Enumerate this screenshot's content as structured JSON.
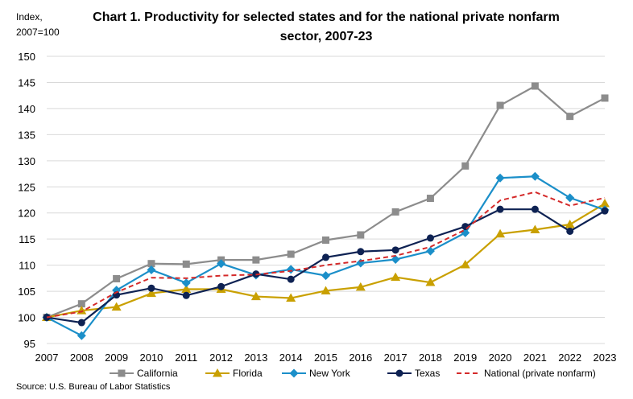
{
  "chart_data": {
    "type": "line",
    "title_line1": "Chart 1. Productivity for selected states and for the national private nonfarm",
    "title_line2": "sector, 2007-23",
    "ylabel_line1": "Index,",
    "ylabel_line2": "2007=100",
    "source": "Source: U.S. Bureau of Labor Statistics",
    "ylim": [
      95,
      150
    ],
    "yticks": [
      95,
      100,
      105,
      110,
      115,
      120,
      125,
      130,
      135,
      140,
      145,
      150
    ],
    "grid": true,
    "legend_position": "bottom",
    "x": [
      "2007",
      "2008",
      "2009",
      "2010",
      "2011",
      "2012",
      "2013",
      "2014",
      "2015",
      "2016",
      "2017",
      "2018",
      "2019",
      "2020",
      "2021",
      "2022",
      "2023"
    ],
    "series": [
      {
        "name": "California",
        "color": "#8c8c8c",
        "marker": "square",
        "dashed": false,
        "values": [
          100,
          102.6,
          107.4,
          110.3,
          110.2,
          111.0,
          111.0,
          112.1,
          114.8,
          115.8,
          120.2,
          122.8,
          129.0,
          140.6,
          144.3,
          138.5,
          142.0
        ]
      },
      {
        "name": "Florida",
        "color": "#c9a000",
        "marker": "triangle",
        "dashed": false,
        "values": [
          100,
          101.3,
          102.0,
          104.6,
          105.4,
          105.4,
          104.0,
          103.7,
          105.1,
          105.8,
          107.7,
          106.7,
          110.1,
          116.0,
          116.8,
          117.8,
          121.8
        ]
      },
      {
        "name": "New York",
        "color": "#1b8fc9",
        "marker": "diamond",
        "dashed": false,
        "values": [
          100,
          96.5,
          105.2,
          109.1,
          106.6,
          110.3,
          108.1,
          109.2,
          108.0,
          110.4,
          111.1,
          112.7,
          116.2,
          126.7,
          127.0,
          122.9,
          120.6
        ]
      },
      {
        "name": "Texas",
        "color": "#0e2253",
        "marker": "circle",
        "dashed": false,
        "values": [
          100,
          99.0,
          104.3,
          105.6,
          104.2,
          105.9,
          108.3,
          107.3,
          111.5,
          112.6,
          112.9,
          115.2,
          117.4,
          120.7,
          120.7,
          116.5,
          120.4
        ]
      },
      {
        "name": "National (private nonfarm)",
        "color": "#d42a2a",
        "marker": "none",
        "dashed": true,
        "values": [
          100,
          101.1,
          104.8,
          107.6,
          107.5,
          108.0,
          108.2,
          108.9,
          110.0,
          110.8,
          111.8,
          113.5,
          116.8,
          122.4,
          124.0,
          121.4,
          122.9
        ]
      }
    ]
  }
}
